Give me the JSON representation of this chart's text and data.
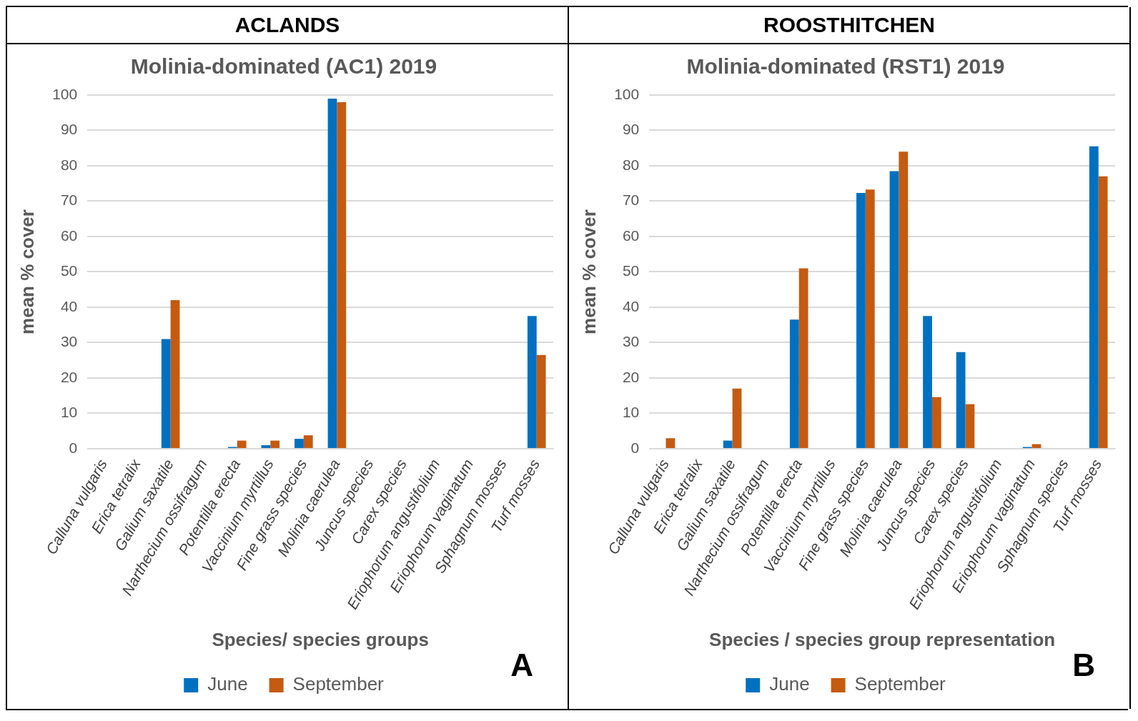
{
  "chart_data": [
    {
      "type": "bar",
      "title": "Molinia-dominated (AC1) 2019",
      "xlabel": "Species/ species groups",
      "ylabel": "mean % cover",
      "annotations": [
        "ACLANDS",
        "A"
      ],
      "categories": [
        "Calluna vulgaris",
        "Erica tetralix",
        "Galium saxatile",
        "Narthecium ossifragum",
        "Potentilla erecta",
        "Vaccinium myrtillus",
        "Fine grass species",
        "Molinia caerulea",
        "Juncus species",
        "Carex species",
        "Eriophorum angustifolium",
        "Eriophorum vaginatum",
        "Sphagnum mosses",
        "Turf mosses"
      ],
      "series": [
        {
          "name": "June",
          "color": "#0070c0",
          "values": [
            0,
            0,
            31,
            0,
            0.5,
            1,
            2.8,
            99,
            0,
            0,
            0,
            0,
            0,
            37.5
          ]
        },
        {
          "name": "September",
          "color": "#c55a11",
          "values": [
            0,
            0,
            42,
            0,
            2.3,
            2.3,
            3.8,
            98,
            0,
            0,
            0,
            0,
            0,
            26.5
          ]
        }
      ],
      "ylim": [
        0,
        100
      ],
      "yticks": [
        0,
        10,
        20,
        30,
        40,
        50,
        60,
        70,
        80,
        90,
        100
      ],
      "grid": "y",
      "legend": "bottom"
    },
    {
      "type": "bar",
      "title": "Molinia-dominated (RST1) 2019",
      "xlabel": "Species / species group representation",
      "ylabel": "mean % cover",
      "annotations": [
        "ROOSTHITCHEN",
        "B"
      ],
      "categories": [
        "Calluna vulgaris",
        "Erica tetralix",
        "Galium saxatile",
        "Narthecium ossifragum",
        "Potentilla erecta",
        "Vaccinium myrtillus",
        "Fine grass species",
        "Molinia caerulea",
        "Juncus species",
        "Carex species",
        "Eriophorum angustifolium",
        "Eriophorum vaginatum",
        "Sphagnum species",
        "Turf mosses"
      ],
      "series": [
        {
          "name": "June",
          "color": "#0070c0",
          "values": [
            0,
            0,
            2.3,
            0,
            36.5,
            0,
            72.3,
            78.5,
            37.5,
            27.3,
            0,
            0.5,
            0,
            85.5
          ]
        },
        {
          "name": "September",
          "color": "#c55a11",
          "values": [
            3,
            0,
            17,
            0,
            51,
            0,
            73.3,
            84,
            14.6,
            12.6,
            0,
            1.3,
            0,
            77
          ]
        }
      ],
      "ylim": [
        0,
        100
      ],
      "yticks": [
        0,
        10,
        20,
        30,
        40,
        50,
        60,
        70,
        80,
        90,
        100
      ],
      "grid": "y",
      "legend": "bottom"
    }
  ]
}
